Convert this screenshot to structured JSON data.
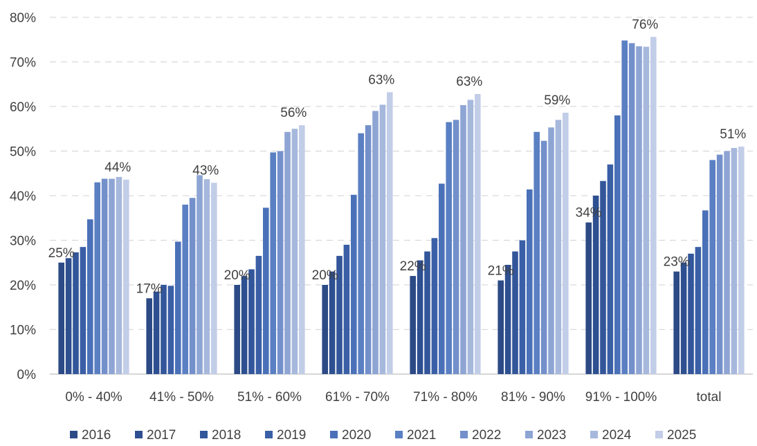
{
  "chart_data": {
    "type": "bar",
    "categories": [
      "0% - 40%",
      "41% - 50%",
      "51% - 60%",
      "61% - 70%",
      "71% - 80%",
      "81% - 90%",
      "91% - 100%",
      "total"
    ],
    "series": [
      {
        "name": "2016",
        "color": "#2b4a86",
        "values": [
          25,
          17,
          20,
          20,
          22,
          21,
          34,
          23
        ]
      },
      {
        "name": "2017",
        "color": "#2e4f90",
        "values": [
          26,
          18.5,
          22,
          23,
          25.5,
          24.5,
          40,
          25
        ]
      },
      {
        "name": "2018",
        "color": "#33569a",
        "values": [
          27.3,
          20,
          23.5,
          26.5,
          27.5,
          27.5,
          43.3,
          27
        ]
      },
      {
        "name": "2019",
        "color": "#3a5fa6",
        "values": [
          28.5,
          19.8,
          26.5,
          29,
          30.5,
          30,
          47,
          28.5
        ]
      },
      {
        "name": "2020",
        "color": "#4a70b8",
        "values": [
          34.7,
          29.7,
          37.3,
          40.2,
          42.7,
          41.4,
          58,
          36.7
        ]
      },
      {
        "name": "2021",
        "color": "#5b7fc3",
        "values": [
          43,
          38,
          49.7,
          54,
          56.5,
          54.3,
          74.8,
          48
        ]
      },
      {
        "name": "2022",
        "color": "#7390cb",
        "values": [
          43.8,
          39.5,
          50,
          55.8,
          57,
          52.3,
          74.2,
          49.2
        ]
      },
      {
        "name": "2023",
        "color": "#8ea5d4",
        "values": [
          43.8,
          44.6,
          54.3,
          59,
          60.3,
          55.3,
          73.5,
          50
        ]
      },
      {
        "name": "2024",
        "color": "#a7b8dd",
        "values": [
          44.2,
          43.7,
          55,
          60.4,
          61.5,
          57,
          73.4,
          50.7
        ]
      },
      {
        "name": "2025",
        "color": "#c2cde8",
        "values": [
          43.6,
          42.9,
          55.8,
          63.2,
          62.8,
          58.6,
          75.6,
          51
        ]
      }
    ],
    "data_labels": [
      {
        "category": "0% - 40%",
        "first": "25%",
        "last": "44%"
      },
      {
        "category": "41% - 50%",
        "first": "17%",
        "last": "43%"
      },
      {
        "category": "51% - 60%",
        "first": "20%",
        "last": "56%"
      },
      {
        "category": "61% - 70%",
        "first": "20%",
        "last": "63%"
      },
      {
        "category": "71% - 80%",
        "first": "22%",
        "last": "63%"
      },
      {
        "category": "81% - 90%",
        "first": "21%",
        "last": "59%"
      },
      {
        "category": "91% - 100%",
        "first": "34%",
        "last": "76%"
      },
      {
        "category": "total",
        "first": "23%",
        "last": "51%"
      }
    ],
    "y_ticks": [
      "0%",
      "10%",
      "20%",
      "30%",
      "40%",
      "50%",
      "60%",
      "70%",
      "80%"
    ],
    "ylim": [
      0,
      80
    ],
    "grid": true,
    "legend_position": "bottom"
  }
}
